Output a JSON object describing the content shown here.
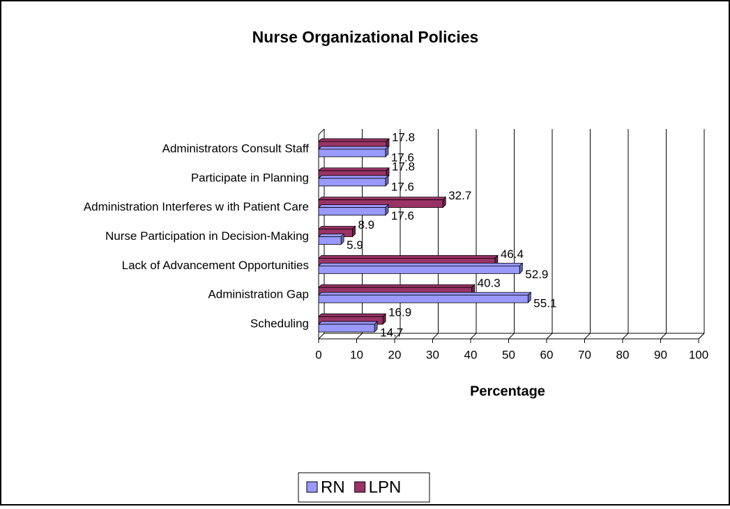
{
  "chart_data": {
    "type": "hbar",
    "title": "Nurse Organizational Policies",
    "categories": [
      "Administrators Consult Staff",
      "Participate in Planning",
      "Administration Interferes w ith Patient Care",
      "Nurse Participation in Decision-Making",
      "Lack of Advancement Opportunities",
      "Administration Gap",
      "Scheduling"
    ],
    "series": [
      {
        "name": "RN",
        "color": "#9999ff",
        "values": [
          17.6,
          17.6,
          17.6,
          5.9,
          52.9,
          55.1,
          14.7
        ]
      },
      {
        "name": "LPN",
        "color": "#993366",
        "values": [
          17.8,
          17.8,
          32.7,
          8.9,
          46.4,
          40.3,
          16.9
        ]
      }
    ],
    "xlabel": "Percentage",
    "xlim": [
      0,
      100
    ],
    "xticks": [
      0,
      10,
      20,
      30,
      40,
      50,
      60,
      70,
      80,
      90,
      100
    ],
    "grid": true,
    "legend": "bottom"
  }
}
